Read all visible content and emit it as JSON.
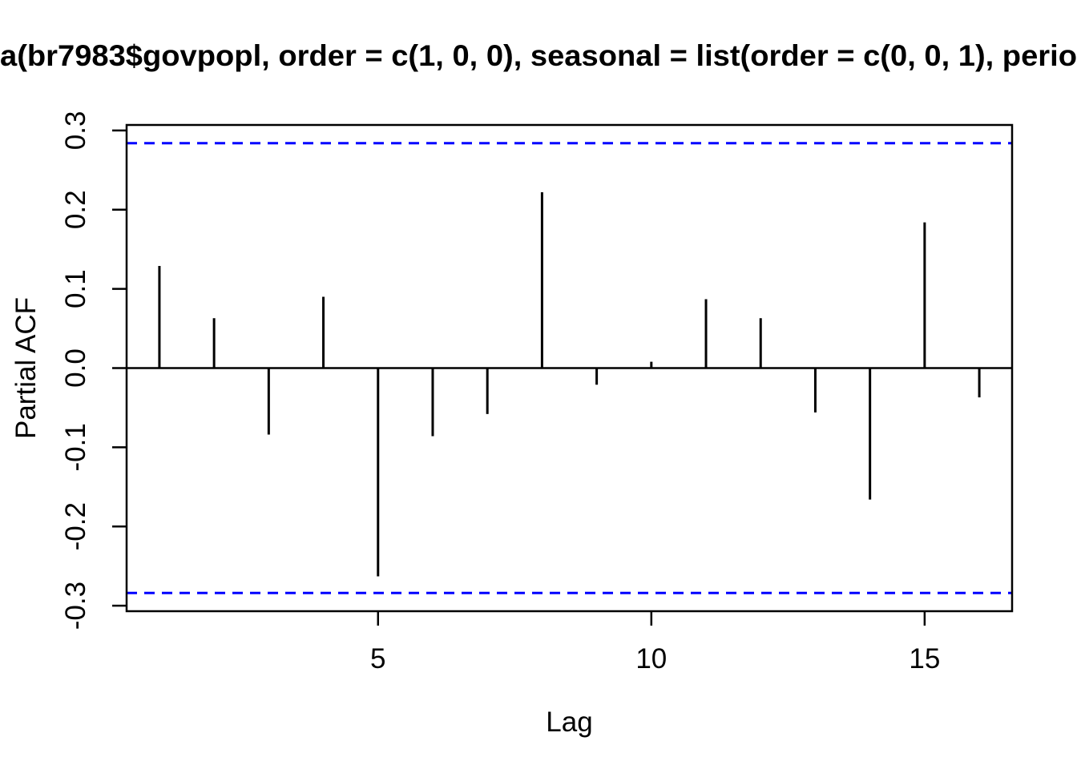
{
  "figure": {
    "background": "#FFFFFF"
  },
  "chart_data": {
    "type": "bar",
    "subtype": "pacf-spike-plot",
    "title": "a(br7983$govpopl, order = c(1, 0, 0), seasonal = list(order = c(0, 0, 1), perio",
    "title_clipped": true,
    "xlabel": "Lag",
    "ylabel": "Partial ACF",
    "x": [
      1,
      2,
      3,
      4,
      5,
      6,
      7,
      8,
      9,
      10,
      11,
      12,
      13,
      14,
      15,
      16
    ],
    "values": [
      0.129,
      0.063,
      -0.084,
      0.09,
      -0.263,
      -0.086,
      -0.058,
      0.222,
      -0.021,
      0.008,
      0.087,
      0.063,
      -0.056,
      -0.166,
      0.184,
      -0.037
    ],
    "conf_bound": 0.284,
    "conf_line_style": "dashed",
    "xlim": [
      0.4,
      16.6
    ],
    "ylim": [
      -0.307,
      0.307
    ],
    "xticks": [
      {
        "label": "5",
        "value": 5
      },
      {
        "label": "10",
        "value": 10
      },
      {
        "label": "15",
        "value": 15
      }
    ],
    "yticks": [
      {
        "label": "0.3",
        "value": 0.3
      },
      {
        "label": "0.2",
        "value": 0.2
      },
      {
        "label": "0.1",
        "value": 0.1
      },
      {
        "label": "0.0",
        "value": 0.0
      },
      {
        "label": "-0.1",
        "value": -0.1
      },
      {
        "label": "-0.2",
        "value": -0.2
      },
      {
        "label": "-0.3",
        "value": -0.3
      }
    ],
    "grid": false,
    "legend": null,
    "colors": {
      "bars": "#000000",
      "axis": "#000000",
      "text": "#000000",
      "conf_line": "#0000FF",
      "background": "#FFFFFF"
    }
  }
}
